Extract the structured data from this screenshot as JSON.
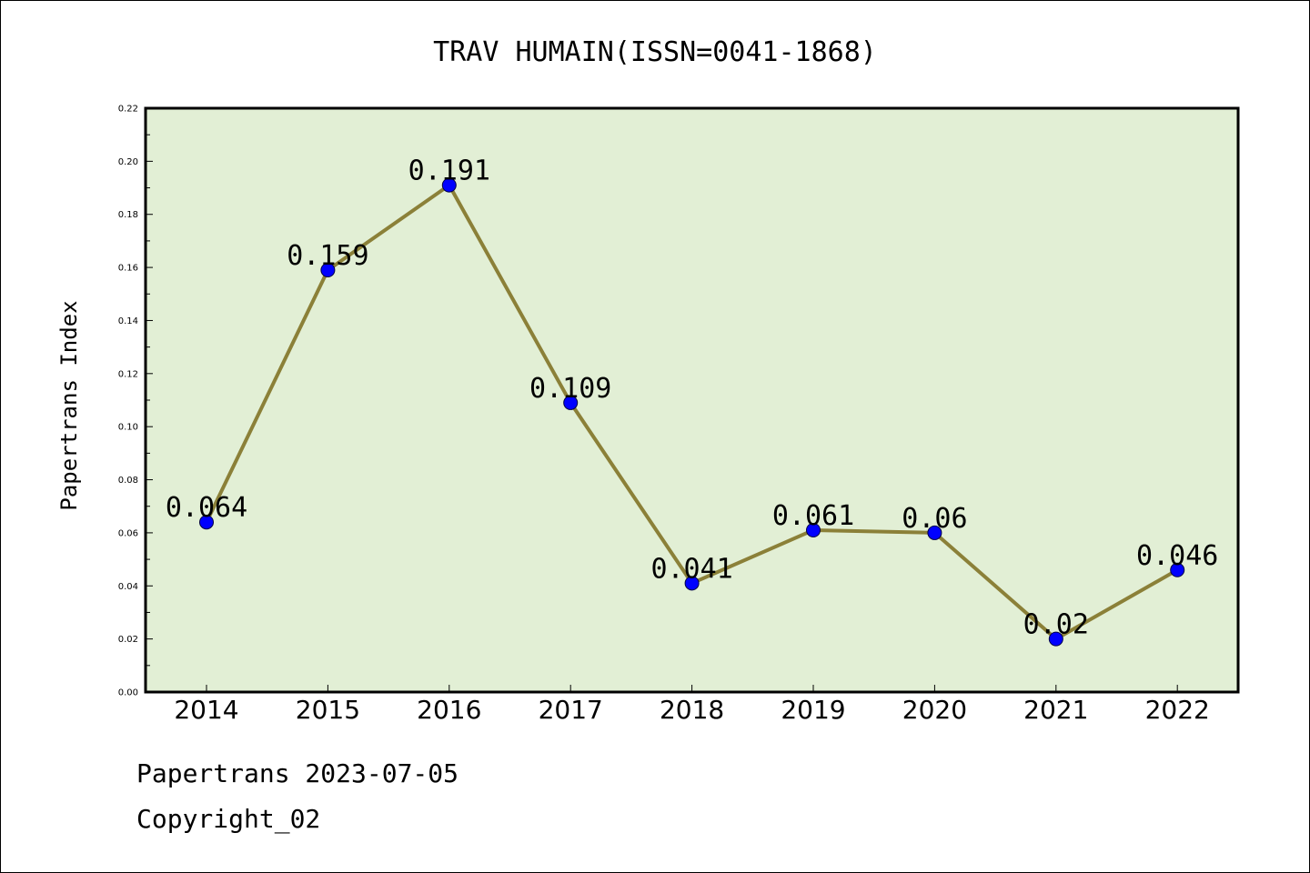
{
  "chart_data": {
    "type": "line",
    "title": "TRAV HUMAIN(ISSN=0041-1868)",
    "xlabel": "",
    "ylabel": "Papertrans Index",
    "categories": [
      "2014",
      "2015",
      "2016",
      "2017",
      "2018",
      "2019",
      "2020",
      "2021",
      "2022"
    ],
    "series": [
      {
        "values": [
          0.064,
          0.159,
          0.191,
          0.109,
          0.041,
          0.061,
          0.06,
          0.02,
          0.046
        ],
        "data_labels": [
          "0.064",
          "0.159",
          "0.191",
          "0.109",
          "0.041",
          "0.061",
          "0.06",
          "0.02",
          "0.046"
        ],
        "line_color": "#8b8038",
        "marker_color": "#0000ff"
      }
    ],
    "ylim": [
      0,
      0.22
    ],
    "yticks": [
      "0.00",
      "0.02",
      "0.04",
      "0.06",
      "0.08",
      "0.10",
      "0.12",
      "0.14",
      "0.16",
      "0.18",
      "0.20",
      "0.22"
    ],
    "plot_background": "#e2efd5",
    "grid": false,
    "legend": "none"
  },
  "footer": {
    "line1": "Papertrans 2023-07-05",
    "line2": "Copyright_02"
  }
}
